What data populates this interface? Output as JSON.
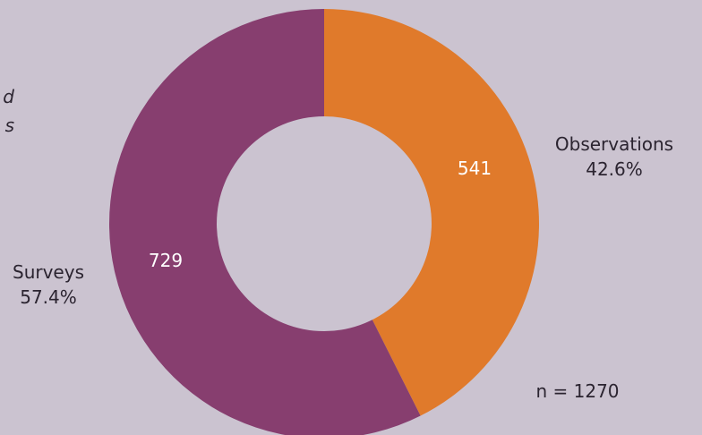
{
  "chart_data": {
    "type": "pie",
    "donut": true,
    "title": "",
    "subtitle_fragment": "d\ns",
    "slices": [
      {
        "label": "Observations",
        "value": 541,
        "percent_label": "42.6%",
        "color": "#e07a2b"
      },
      {
        "label": "Surveys",
        "value": 729,
        "percent_label": "57.4%",
        "color": "#873e6f"
      }
    ],
    "total_label": "n = 1270",
    "value_label_color": "#ffffff",
    "category_label_color": "#2b2430",
    "hole_color": "#cbc3d0"
  }
}
